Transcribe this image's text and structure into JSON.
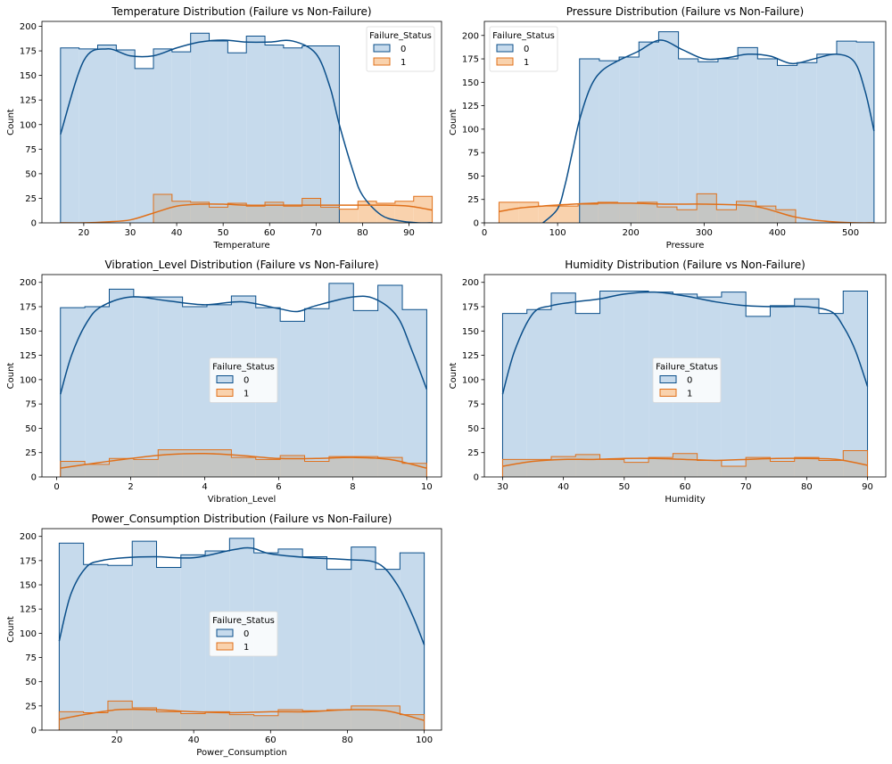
{
  "colors": {
    "series_0": "#0b4f8a",
    "series_0_fill": "#c6daec",
    "series_1": "#e0701a",
    "series_1_fill": "#f9d2ad",
    "overlap_fill": "#c5c6c4"
  },
  "chart_data": [
    {
      "type": "histogram",
      "title": "Temperature Distribution (Failure vs Non-Failure)",
      "xlabel": "Temperature",
      "ylabel": "Count",
      "xlim": [
        11,
        97
      ],
      "ylim": [
        0,
        205
      ],
      "xticks": [
        20,
        30,
        40,
        50,
        60,
        70,
        80,
        90
      ],
      "yticks": [
        0,
        25,
        50,
        75,
        100,
        125,
        150,
        175,
        200
      ],
      "grid": false,
      "legend": {
        "title": "Failure_Status",
        "position": "top-right",
        "entries": [
          "0",
          "1"
        ]
      },
      "series": [
        {
          "name": "0",
          "bin_edges": [
            15,
            19,
            23,
            27,
            31,
            35,
            39,
            43,
            47,
            51,
            55,
            59,
            63,
            67,
            71,
            75
          ],
          "counts": [
            178,
            177,
            181,
            176,
            157,
            177,
            174,
            193,
            185,
            173,
            190,
            181,
            178,
            180,
            180
          ],
          "kde_x": [
            15,
            20,
            25,
            30,
            35,
            40,
            45,
            50,
            55,
            60,
            65,
            70,
            73,
            75,
            78,
            80,
            84,
            88,
            92,
            95
          ],
          "kde_y": [
            90,
            165,
            177,
            170,
            170,
            178,
            184,
            186,
            184,
            184,
            185,
            172,
            138,
            100,
            52,
            28,
            8,
            2,
            0,
            0
          ]
        },
        {
          "name": "1",
          "bin_edges": [
            35,
            39,
            43,
            47,
            51,
            55,
            59,
            63,
            67,
            71,
            75,
            79,
            83,
            87,
            91,
            95
          ],
          "counts": [
            29,
            22,
            21,
            16,
            20,
            17,
            21,
            17,
            25,
            16,
            14,
            22,
            20,
            22,
            27
          ],
          "kde_x": [
            15,
            20,
            25,
            30,
            35,
            40,
            45,
            50,
            55,
            60,
            65,
            70,
            75,
            80,
            85,
            90,
            95
          ],
          "kde_y": [
            0,
            0,
            1,
            3,
            10,
            17,
            19,
            19,
            18,
            18,
            18,
            18,
            18,
            18,
            18,
            17,
            13
          ]
        }
      ]
    },
    {
      "type": "histogram",
      "title": "Pressure Distribution (Failure vs Non-Failure)",
      "xlabel": "Pressure",
      "ylabel": "Count",
      "xlim": [
        0,
        548
      ],
      "ylim": [
        0,
        215
      ],
      "xticks": [
        0,
        100,
        200,
        300,
        400,
        500
      ],
      "yticks": [
        0,
        25,
        50,
        75,
        100,
        125,
        150,
        175,
        200
      ],
      "grid": false,
      "legend": {
        "title": "Failure_Status",
        "position": "top-left",
        "entries": [
          "0",
          "1"
        ]
      },
      "series": [
        {
          "name": "0",
          "bin_edges": [
            130,
            157,
            184,
            211,
            238,
            265,
            292,
            319,
            346,
            373,
            400,
            427,
            454,
            481,
            508,
            532
          ],
          "counts": [
            175,
            173,
            177,
            193,
            204,
            175,
            172,
            175,
            187,
            175,
            168,
            171,
            180,
            194,
            193
          ],
          "kde_x": [
            80,
            100,
            110,
            120,
            130,
            145,
            160,
            180,
            210,
            240,
            270,
            300,
            330,
            360,
            390,
            420,
            450,
            480,
            505,
            520,
            532
          ],
          "kde_y": [
            0,
            15,
            40,
            75,
            110,
            145,
            162,
            172,
            183,
            195,
            185,
            175,
            176,
            180,
            178,
            170,
            175,
            180,
            172,
            140,
            98
          ]
        },
        {
          "name": "1",
          "bin_edges": [
            20,
            47,
            74,
            101,
            128,
            155,
            182,
            209,
            236,
            263,
            290,
            317,
            344,
            371,
            398,
            425
          ],
          "counts": [
            22,
            22,
            18,
            18,
            20,
            22,
            21,
            22,
            17,
            14,
            31,
            14,
            23,
            18,
            14
          ],
          "kde_x": [
            20,
            50,
            80,
            100,
            150,
            200,
            250,
            300,
            350,
            380,
            420,
            450,
            480,
            510,
            532
          ],
          "kde_y": [
            12,
            16,
            18,
            19,
            21,
            21,
            20,
            20,
            19,
            16,
            7,
            3,
            1,
            0,
            0
          ]
        }
      ]
    },
    {
      "type": "histogram",
      "title": "Vibration_Level Distribution (Failure vs Non-Failure)",
      "xlabel": "Vibration_Level",
      "ylabel": "Count",
      "xlim": [
        -0.4,
        10.4
      ],
      "ylim": [
        0,
        208
      ],
      "xticks": [
        0,
        2,
        4,
        6,
        8,
        10
      ],
      "yticks": [
        0,
        25,
        50,
        75,
        100,
        125,
        150,
        175,
        200
      ],
      "grid": false,
      "legend": {
        "title": "Failure_Status",
        "position": "center",
        "entries": [
          "0",
          "1"
        ]
      },
      "series": [
        {
          "name": "0",
          "bin_edges": [
            0.1,
            0.76,
            1.42,
            2.08,
            2.74,
            3.4,
            4.06,
            4.72,
            5.38,
            6.04,
            6.7,
            7.36,
            8.02,
            8.68,
            9.34,
            10
          ],
          "counts": [
            174,
            175,
            193,
            185,
            185,
            175,
            177,
            186,
            174,
            160,
            173,
            199,
            171,
            197,
            172
          ],
          "kde_x": [
            0.1,
            0.4,
            0.8,
            1.2,
            2,
            3,
            4,
            5,
            6,
            6.5,
            7,
            8,
            8.6,
            9.2,
            9.6,
            10
          ],
          "kde_y": [
            85,
            125,
            158,
            175,
            185,
            181,
            177,
            180,
            173,
            170,
            176,
            185,
            183,
            165,
            130,
            90
          ]
        },
        {
          "name": "1",
          "bin_edges": [
            0.1,
            0.76,
            1.42,
            2.08,
            2.74,
            3.4,
            4.06,
            4.72,
            5.38,
            6.04,
            6.7,
            7.36,
            8.02,
            8.68,
            9.34,
            10
          ],
          "counts": [
            16,
            13,
            19,
            18,
            28,
            28,
            28,
            20,
            18,
            22,
            16,
            21,
            21,
            20,
            14
          ],
          "kde_x": [
            0.1,
            1,
            2,
            3,
            4,
            5,
            6,
            7,
            8,
            9,
            10
          ],
          "kde_y": [
            9,
            14,
            19,
            23,
            24,
            22,
            19,
            19,
            20,
            18,
            9
          ]
        }
      ]
    },
    {
      "type": "histogram",
      "title": "Humidity Distribution (Failure vs Non-Failure)",
      "xlabel": "Humidity",
      "ylabel": "Count",
      "xlim": [
        27,
        93
      ],
      "ylim": [
        0,
        208
      ],
      "xticks": [
        30,
        40,
        50,
        60,
        70,
        80,
        90
      ],
      "yticks": [
        0,
        25,
        50,
        75,
        100,
        125,
        150,
        175,
        200
      ],
      "grid": false,
      "legend": {
        "title": "Failure_Status",
        "position": "center",
        "entries": [
          "0",
          "1"
        ]
      },
      "series": [
        {
          "name": "0",
          "bin_edges": [
            30,
            34,
            38,
            42,
            46,
            50,
            54,
            58,
            62,
            66,
            70,
            74,
            78,
            82,
            86,
            90
          ],
          "counts": [
            168,
            172,
            189,
            168,
            191,
            191,
            190,
            188,
            185,
            190,
            165,
            176,
            183,
            168,
            191
          ],
          "kde_x": [
            30,
            32,
            35,
            38,
            42,
            46,
            50,
            55,
            60,
            65,
            70,
            75,
            80,
            84,
            86,
            88,
            90
          ],
          "kde_y": [
            85,
            130,
            168,
            176,
            180,
            183,
            188,
            190,
            186,
            180,
            176,
            175,
            175,
            170,
            155,
            130,
            93
          ]
        },
        {
          "name": "1",
          "bin_edges": [
            30,
            34,
            38,
            42,
            46,
            50,
            54,
            58,
            62,
            66,
            70,
            74,
            78,
            82,
            86,
            90
          ],
          "counts": [
            18,
            18,
            21,
            23,
            18,
            15,
            20,
            24,
            17,
            11,
            20,
            16,
            20,
            17,
            27
          ],
          "kde_x": [
            30,
            35,
            40,
            45,
            50,
            55,
            60,
            65,
            70,
            75,
            80,
            85,
            90
          ],
          "kde_y": [
            11,
            16,
            18,
            18,
            19,
            19,
            18,
            17,
            18,
            19,
            19,
            18,
            12
          ]
        }
      ]
    },
    {
      "type": "histogram",
      "title": "Power_Consumption Distribution (Failure vs Non-Failure)",
      "xlabel": "Power_Consumption",
      "ylabel": "Count",
      "xlim": [
        0.5,
        104.5
      ],
      "ylim": [
        0,
        208
      ],
      "xticks": [
        20,
        40,
        60,
        80,
        100
      ],
      "yticks": [
        0,
        25,
        50,
        75,
        100,
        125,
        150,
        175,
        200
      ],
      "grid": false,
      "legend": {
        "title": "Failure_Status",
        "position": "center",
        "entries": [
          "0",
          "1"
        ]
      },
      "series": [
        {
          "name": "0",
          "bin_edges": [
            5,
            11.33,
            17.67,
            24,
            30.33,
            36.67,
            43,
            49.33,
            55.67,
            62,
            68.33,
            74.67,
            81,
            87.33,
            93.67,
            100
          ],
          "counts": [
            193,
            171,
            170,
            195,
            168,
            181,
            185,
            198,
            183,
            187,
            179,
            166,
            189,
            166,
            183
          ],
          "kde_x": [
            5,
            8,
            12,
            16,
            22,
            30,
            40,
            50,
            55,
            60,
            70,
            80,
            88,
            93,
            97,
            100
          ],
          "kde_y": [
            92,
            140,
            168,
            175,
            178,
            179,
            178,
            186,
            188,
            182,
            178,
            176,
            172,
            150,
            118,
            88
          ]
        },
        {
          "name": "1",
          "bin_edges": [
            5,
            11.33,
            17.67,
            24,
            30.33,
            36.67,
            43,
            49.33,
            55.67,
            62,
            68.33,
            74.67,
            81,
            87.33,
            93.67,
            100
          ],
          "counts": [
            19,
            18,
            30,
            23,
            19,
            17,
            19,
            16,
            15,
            21,
            20,
            21,
            25,
            25,
            16
          ],
          "kde_x": [
            5,
            10,
            20,
            30,
            40,
            50,
            60,
            70,
            80,
            90,
            100
          ],
          "kde_y": [
            11,
            15,
            21,
            21,
            19,
            18,
            19,
            19,
            21,
            20,
            10
          ]
        }
      ]
    }
  ]
}
